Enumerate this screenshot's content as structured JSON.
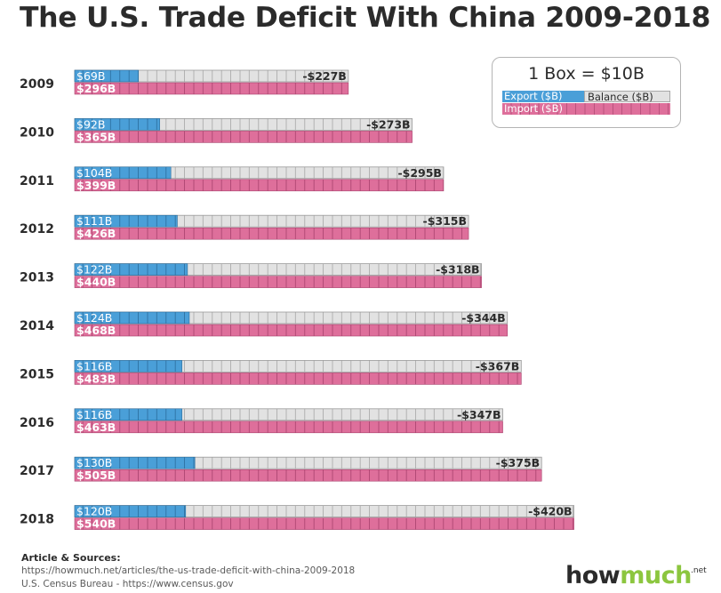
{
  "title": "The U.S. Trade Deficit With China 2009-2018",
  "legend": {
    "title": "1 Box = $10B",
    "export_label": "Export ($B)",
    "balance_label": "Balance ($B)",
    "import_label": "Import ($B)"
  },
  "colors": {
    "export": "#4a9fd8",
    "balance": "#e2e2e2",
    "import": "#de6f9b",
    "text": "#2b2b2b",
    "logo_accent": "#8cc63f"
  },
  "chart_data": {
    "type": "bar",
    "categories": [
      "2009",
      "2010",
      "2011",
      "2012",
      "2013",
      "2014",
      "2015",
      "2016",
      "2017",
      "2018"
    ],
    "series": [
      {
        "name": "Export ($B)",
        "values": [
          69,
          92,
          104,
          111,
          122,
          124,
          116,
          116,
          130,
          120
        ],
        "labels": [
          "$69B",
          "$92B",
          "$104B",
          "$111B",
          "$122B",
          "$124B",
          "$116B",
          "$116B",
          "$130B",
          "$120B"
        ]
      },
      {
        "name": "Import ($B)",
        "values": [
          296,
          365,
          399,
          426,
          440,
          468,
          483,
          463,
          505,
          540
        ],
        "labels": [
          "$296B",
          "$365B",
          "$399B",
          "$426B",
          "$440B",
          "$468B",
          "$483B",
          "$463B",
          "$505B",
          "$540B"
        ]
      },
      {
        "name": "Balance ($B)",
        "values": [
          -227,
          -273,
          -295,
          -315,
          -318,
          -344,
          -367,
          -347,
          -375,
          -420
        ],
        "labels": [
          "-$227B",
          "-$273B",
          "-$295B",
          "-$315B",
          "-$318B",
          "-$344B",
          "-$367B",
          "-$347B",
          "-$375B",
          "-$420B"
        ]
      }
    ],
    "unit": "1 Box = $10B",
    "legend_position": "top-right"
  },
  "sources": {
    "label": "Article & Sources:",
    "lines": [
      "https://howmuch.net/articles/the-us-trade-deficit-with-china-2009-2018",
      "U.S. Census Bureau - https://www.census.gov"
    ]
  },
  "logo": {
    "part1": "how",
    "part2": "much",
    "suffix": ".net"
  }
}
